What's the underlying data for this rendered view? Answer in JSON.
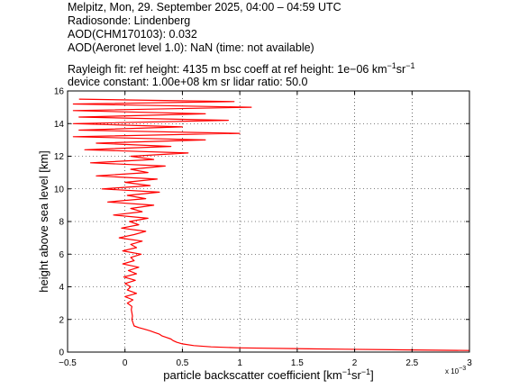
{
  "header": {
    "line1": "Melpitz, Mon, 29. September 2025, 04:00 – 04:59 UTC",
    "line2": "Radiosonde: Lindenberg",
    "line3": "AOD(CHM170103): 0.032",
    "line4": "AOD(Aeronet level 1.0): NaN   (time: not available)",
    "line5_a": "Rayleigh fit:     ref height: 4135 m     bsc coeff at ref height: 1e−06 km",
    "line5_sup1": "−1",
    "line5_b": "sr",
    "line5_sup2": "−1",
    "line6": "device constant: 1.00e+08 km sr     lidar ratio: 50.0"
  },
  "chart_data": {
    "type": "line",
    "title": "",
    "xlabel": "particle backscatter coefficient [km",
    "xlabel_sup1": "−1",
    "xlabel_mid": "sr",
    "xlabel_sup2": "−1",
    "xlabel_end": "]",
    "ylabel": "height above sea level [km]",
    "x_multiplier_label": "x 10",
    "x_multiplier_exp": "−3",
    "xlim": [
      -0.5,
      3.0
    ],
    "ylim": [
      0,
      16
    ],
    "xticks": [
      "−0.5",
      "0",
      "0.5",
      "1",
      "1.5",
      "2",
      "2.5",
      "3"
    ],
    "xtick_values": [
      -0.5,
      0,
      0.5,
      1,
      1.5,
      2,
      2.5,
      3
    ],
    "yticks": [
      "0",
      "2",
      "4",
      "6",
      "8",
      "10",
      "12",
      "14",
      "16"
    ],
    "ytick_values": [
      0,
      2,
      4,
      6,
      8,
      10,
      12,
      14,
      16
    ],
    "grid": true,
    "series": [
      {
        "name": "",
        "color": "#ff0000",
        "points": [
          [
            3.0,
            0.1
          ],
          [
            2.4,
            0.14
          ],
          [
            1.6,
            0.2
          ],
          [
            1.0,
            0.26
          ],
          [
            0.75,
            0.32
          ],
          [
            0.6,
            0.4
          ],
          [
            0.5,
            0.5
          ],
          [
            0.45,
            0.6
          ],
          [
            0.42,
            0.7
          ],
          [
            0.4,
            0.8
          ],
          [
            0.36,
            0.9
          ],
          [
            0.32,
            1.0
          ],
          [
            0.3,
            1.1
          ],
          [
            0.26,
            1.2
          ],
          [
            0.22,
            1.3
          ],
          [
            0.17,
            1.4
          ],
          [
            0.12,
            1.5
          ],
          [
            0.08,
            1.6
          ],
          [
            0.07,
            1.8
          ],
          [
            0.06,
            2.0
          ],
          [
            0.065,
            2.2
          ],
          [
            0.06,
            2.4
          ],
          [
            0.055,
            2.6
          ],
          [
            0.06,
            2.8
          ],
          [
            0.02,
            3.0
          ],
          [
            0.07,
            3.2
          ],
          [
            0.0,
            3.4
          ],
          [
            0.1,
            3.6
          ],
          [
            0.02,
            3.8
          ],
          [
            0.05,
            4.0
          ],
          [
            0.0,
            4.2
          ],
          [
            0.09,
            4.4
          ],
          [
            -0.01,
            4.6
          ],
          [
            0.1,
            4.8
          ],
          [
            0.03,
            5.0
          ],
          [
            0.12,
            5.2
          ],
          [
            -0.02,
            5.4
          ],
          [
            0.08,
            5.6
          ],
          [
            0.05,
            5.8
          ],
          [
            0.14,
            6.0
          ],
          [
            -0.02,
            6.2
          ],
          [
            0.1,
            6.4
          ],
          [
            0.05,
            6.6
          ],
          [
            0.15,
            6.8
          ],
          [
            -0.05,
            7.0
          ],
          [
            0.08,
            7.2
          ],
          [
            0.18,
            7.4
          ],
          [
            -0.03,
            7.6
          ],
          [
            0.12,
            7.8
          ],
          [
            0.04,
            8.0
          ],
          [
            0.2,
            8.2
          ],
          [
            -0.1,
            8.4
          ],
          [
            0.15,
            8.6
          ],
          [
            0.05,
            8.8
          ],
          [
            0.25,
            9.0
          ],
          [
            -0.15,
            9.2
          ],
          [
            0.18,
            9.4
          ],
          [
            0.02,
            9.6
          ],
          [
            0.3,
            9.8
          ],
          [
            -0.2,
            10.0
          ],
          [
            0.22,
            10.2
          ],
          [
            0.0,
            10.4
          ],
          [
            0.28,
            10.6
          ],
          [
            -0.25,
            10.8
          ],
          [
            0.2,
            11.0
          ],
          [
            0.05,
            11.2
          ],
          [
            0.35,
            11.4
          ],
          [
            -0.3,
            11.6
          ],
          [
            0.25,
            11.8
          ],
          [
            0.05,
            12.0
          ],
          [
            0.55,
            12.2
          ],
          [
            -0.35,
            12.4
          ],
          [
            0.4,
            12.6
          ],
          [
            -0.25,
            12.8
          ],
          [
            0.7,
            13.0
          ],
          [
            -0.45,
            13.2
          ],
          [
            1.0,
            13.4
          ],
          [
            -0.4,
            13.6
          ],
          [
            0.5,
            13.8
          ],
          [
            -0.45,
            14.0
          ],
          [
            0.9,
            14.2
          ],
          [
            -0.4,
            14.4
          ],
          [
            0.7,
            14.6
          ],
          [
            -0.45,
            14.8
          ],
          [
            1.1,
            15.0
          ],
          [
            -0.45,
            15.2
          ],
          [
            0.95,
            15.35
          ],
          [
            -0.4,
            15.5
          ]
        ]
      }
    ]
  }
}
